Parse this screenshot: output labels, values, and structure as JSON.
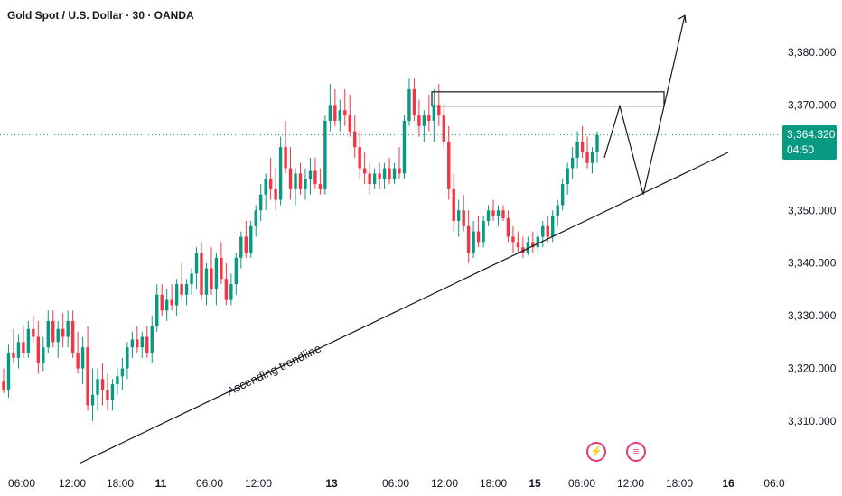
{
  "chart_title": "Gold Spot / U.S. Dollar · 30 · OANDA",
  "price_tag": {
    "price": "3,364.320",
    "countdown": "04:50",
    "color": "#089981"
  },
  "annotation": "Ascending trendline",
  "colors": {
    "up": "#089981",
    "down": "#f23645",
    "line": "#131722"
  },
  "chart_data": {
    "type": "candlestick",
    "title": "Gold Spot / U.S. Dollar · 30 · OANDA",
    "y_ticks": [
      "3,310.000",
      "3,320.000",
      "3,330.000",
      "3,340.000",
      "3,350.000",
      "3,360.000",
      "3,370.000",
      "3,380.000"
    ],
    "ylim": [
      3304,
      3388
    ],
    "x_ticks": [
      {
        "label": "06:00",
        "bold": false
      },
      {
        "label": "12:00",
        "bold": false
      },
      {
        "label": "18:00",
        "bold": false
      },
      {
        "label": "11",
        "bold": true
      },
      {
        "label": "06:00",
        "bold": false
      },
      {
        "label": "12:00",
        "bold": false
      },
      {
        "label": "13",
        "bold": true
      },
      {
        "label": "06:00",
        "bold": false
      },
      {
        "label": "12:00",
        "bold": false
      },
      {
        "label": "18:00",
        "bold": false
      },
      {
        "label": "15",
        "bold": true
      },
      {
        "label": "06:00",
        "bold": false
      },
      {
        "label": "12:00",
        "bold": false
      },
      {
        "label": "18:00",
        "bold": false
      },
      {
        "label": "16",
        "bold": true
      },
      {
        "label": "06:0",
        "bold": false
      }
    ],
    "last_price": 3364.32,
    "candles": [
      [
        3317.5,
        3320.0,
        3315.3,
        3316.0
      ],
      [
        3316.0,
        3324.5,
        3314.5,
        3323.0
      ],
      [
        3323.0,
        3327.5,
        3321.0,
        3322.0
      ],
      [
        3322.0,
        3326.5,
        3320.0,
        3325.0
      ],
      [
        3325.0,
        3328.0,
        3322.0,
        3323.0
      ],
      [
        3323.0,
        3329.0,
        3322.0,
        3327.5
      ],
      [
        3327.5,
        3330.0,
        3325.0,
        3326.0
      ],
      [
        3326.0,
        3329.0,
        3319.0,
        3321.0
      ],
      [
        3321.0,
        3326.0,
        3319.5,
        3324.0
      ],
      [
        3324.0,
        3331.0,
        3323.0,
        3329.0
      ],
      [
        3329.0,
        3331.0,
        3324.0,
        3325.0
      ],
      [
        3325.0,
        3329.0,
        3322.0,
        3327.5
      ],
      [
        3327.5,
        3330.5,
        3324.0,
        3326.0
      ],
      [
        3326.0,
        3331.0,
        3324.0,
        3329.0
      ],
      [
        3329.0,
        3331.0,
        3322.0,
        3323.0
      ],
      [
        3323.0,
        3327.0,
        3319.0,
        3320.0
      ],
      [
        3320.0,
        3326.0,
        3317.0,
        3324.0
      ],
      [
        3324.0,
        3328.0,
        3312.0,
        3313.0
      ],
      [
        3313.0,
        3320.0,
        3310.0,
        3315.0
      ],
      [
        3315.0,
        3320.0,
        3312.0,
        3318.0
      ],
      [
        3318.0,
        3321.0,
        3313.0,
        3316.0
      ],
      [
        3316.0,
        3319.0,
        3312.0,
        3314.0
      ],
      [
        3314.0,
        3318.0,
        3312.0,
        3317.0
      ],
      [
        3317.0,
        3320.0,
        3315.0,
        3318.5
      ],
      [
        3318.5,
        3322.0,
        3316.0,
        3320.0
      ],
      [
        3320.0,
        3325.0,
        3318.0,
        3324.0
      ],
      [
        3324.0,
        3327.0,
        3322.0,
        3325.5
      ],
      [
        3325.5,
        3328.0,
        3323.0,
        3324.0
      ],
      [
        3324.0,
        3327.0,
        3322.0,
        3326.0
      ],
      [
        3326.0,
        3328.0,
        3322.0,
        3323.0
      ],
      [
        3323.0,
        3330.0,
        3321.0,
        3328.0
      ],
      [
        3328.0,
        3336.0,
        3327.0,
        3334.0
      ],
      [
        3334.0,
        3336.0,
        3330.0,
        3331.0
      ],
      [
        3331.0,
        3335.0,
        3329.0,
        3333.0
      ],
      [
        3333.0,
        3336.0,
        3331.0,
        3332.0
      ],
      [
        3332.0,
        3337.0,
        3330.0,
        3336.0
      ],
      [
        3336.0,
        3340.0,
        3333.0,
        3334.0
      ],
      [
        3334.0,
        3337.0,
        3332.0,
        3336.0
      ],
      [
        3336.0,
        3339.0,
        3334.0,
        3338.0
      ],
      [
        3338.0,
        3343.0,
        3335.0,
        3342.0
      ],
      [
        3342.0,
        3344.0,
        3333.0,
        3334.0
      ],
      [
        3334.0,
        3340.0,
        3332.0,
        3339.0
      ],
      [
        3339.0,
        3343.0,
        3334.0,
        3335.0
      ],
      [
        3335.0,
        3342.0,
        3332.0,
        3341.0
      ],
      [
        3341.0,
        3344.0,
        3336.0,
        3337.0
      ],
      [
        3337.0,
        3340.0,
        3332.0,
        3333.0
      ],
      [
        3333.0,
        3338.0,
        3332.0,
        3336.0
      ],
      [
        3336.0,
        3342.0,
        3334.0,
        3341.0
      ],
      [
        3341.0,
        3346.0,
        3339.0,
        3345.0
      ],
      [
        3345.0,
        3348.0,
        3341.0,
        3342.0
      ],
      [
        3342.0,
        3348.0,
        3341.0,
        3347.0
      ],
      [
        3347.0,
        3351.0,
        3345.0,
        3350.0
      ],
      [
        3350.0,
        3355.0,
        3348.0,
        3353.0
      ],
      [
        3353.0,
        3357.0,
        3350.0,
        3356.0
      ],
      [
        3356.0,
        3360.0,
        3352.0,
        3354.0
      ],
      [
        3354.0,
        3358.0,
        3350.0,
        3352.0
      ],
      [
        3352.0,
        3364.0,
        3351.0,
        3362.0
      ],
      [
        3362.0,
        3367.0,
        3357.0,
        3358.0
      ],
      [
        3358.0,
        3362.0,
        3352.0,
        3354.0
      ],
      [
        3354.0,
        3358.0,
        3351.0,
        3357.0
      ],
      [
        3357.0,
        3359.0,
        3353.0,
        3354.0
      ],
      [
        3354.0,
        3358.0,
        3352.0,
        3356.0
      ],
      [
        3356.0,
        3360.0,
        3353.0,
        3357.5
      ],
      [
        3357.5,
        3360.0,
        3354.0,
        3355.0
      ],
      [
        3355.0,
        3358.0,
        3353.0,
        3354.0
      ],
      [
        3354.0,
        3368.0,
        3353.0,
        3367.0
      ],
      [
        3367.0,
        3374.0,
        3365.0,
        3370.0
      ],
      [
        3370.0,
        3373.0,
        3366.0,
        3367.0
      ],
      [
        3367.0,
        3371.0,
        3365.0,
        3369.0
      ],
      [
        3369.0,
        3373.0,
        3366.0,
        3368.0
      ],
      [
        3368.0,
        3372.0,
        3364.0,
        3365.0
      ],
      [
        3365.0,
        3368.0,
        3360.0,
        3362.0
      ],
      [
        3362.0,
        3365.0,
        3356.0,
        3358.0
      ],
      [
        3358.0,
        3361.0,
        3355.0,
        3357.0
      ],
      [
        3357.0,
        3359.0,
        3353.0,
        3355.0
      ],
      [
        3355.0,
        3358.0,
        3354.0,
        3357.0
      ],
      [
        3357.0,
        3359.0,
        3354.0,
        3356.0
      ],
      [
        3356.0,
        3359.0,
        3354.0,
        3358.0
      ],
      [
        3358.0,
        3360.0,
        3355.0,
        3356.0
      ],
      [
        3356.0,
        3359.0,
        3355.0,
        3358.0
      ],
      [
        3358.0,
        3362.0,
        3356.0,
        3357.0
      ],
      [
        3357.0,
        3368.0,
        3356.0,
        3367.0
      ],
      [
        3367.0,
        3375.0,
        3366.0,
        3373.0
      ],
      [
        3373.0,
        3375.0,
        3367.0,
        3368.0
      ],
      [
        3368.0,
        3371.0,
        3364.0,
        3366.0
      ],
      [
        3366.0,
        3369.0,
        3363.0,
        3368.0
      ],
      [
        3368.0,
        3372.0,
        3365.0,
        3367.0
      ],
      [
        3367.0,
        3373.0,
        3363.0,
        3370.0
      ],
      [
        3370.0,
        3374.0,
        3366.0,
        3368.0
      ],
      [
        3368.0,
        3370.0,
        3362.0,
        3363.0
      ],
      [
        3363.0,
        3366.0,
        3352.0,
        3354.0
      ],
      [
        3354.0,
        3357.0,
        3346.0,
        3348.0
      ],
      [
        3348.0,
        3352.0,
        3345.0,
        3350.0
      ],
      [
        3350.0,
        3353.0,
        3346.0,
        3347.0
      ],
      [
        3347.0,
        3350.0,
        3340.0,
        3342.0
      ],
      [
        3342.0,
        3348.0,
        3341.0,
        3346.0
      ],
      [
        3346.0,
        3349.0,
        3343.0,
        3344.0
      ],
      [
        3344.0,
        3349.0,
        3343.0,
        3348.0
      ],
      [
        3348.0,
        3351.0,
        3347.0,
        3350.0
      ],
      [
        3350.0,
        3352.0,
        3348.0,
        3349.0
      ],
      [
        3349.0,
        3351.0,
        3347.0,
        3350.0
      ],
      [
        3350.0,
        3351.0,
        3348.0,
        3348.5
      ],
      [
        3348.5,
        3350.0,
        3344.0,
        3345.0
      ],
      [
        3345.0,
        3347.0,
        3342.0,
        3344.0
      ],
      [
        3344.0,
        3346.0,
        3342.0,
        3343.0
      ],
      [
        3343.0,
        3345.0,
        3341.0,
        3342.0
      ],
      [
        3342.0,
        3345.0,
        3341.5,
        3344.0
      ],
      [
        3344.0,
        3346.0,
        3342.0,
        3343.0
      ],
      [
        3343.0,
        3346.0,
        3342.0,
        3345.0
      ],
      [
        3345.0,
        3348.0,
        3343.0,
        3347.0
      ],
      [
        3347.0,
        3349.0,
        3344.0,
        3345.0
      ],
      [
        3345.0,
        3350.0,
        3344.0,
        3349.0
      ],
      [
        3349.0,
        3352.0,
        3347.0,
        3351.0
      ],
      [
        3351.0,
        3356.0,
        3350.0,
        3355.0
      ],
      [
        3355.0,
        3359.0,
        3353.0,
        3358.0
      ],
      [
        3358.0,
        3362.0,
        3356.0,
        3360.0
      ],
      [
        3360.0,
        3365.0,
        3358.0,
        3363.0
      ],
      [
        3363.0,
        3366.0,
        3360.0,
        3361.0
      ],
      [
        3361.0,
        3364.0,
        3358.0,
        3359.0
      ],
      [
        3359.0,
        3362.0,
        3357.0,
        3361.0
      ],
      [
        3361.0,
        3365.0,
        3359.0,
        3364.3
      ]
    ],
    "resistance_zone": {
      "from": 3369.8,
      "to": 3372.5
    },
    "trendline": {
      "from": 3302.0,
      "to": 3361.0
    },
    "projection_path": [
      3360.0,
      3369.8,
      3353.0,
      3369.8,
      3387.0
    ]
  }
}
